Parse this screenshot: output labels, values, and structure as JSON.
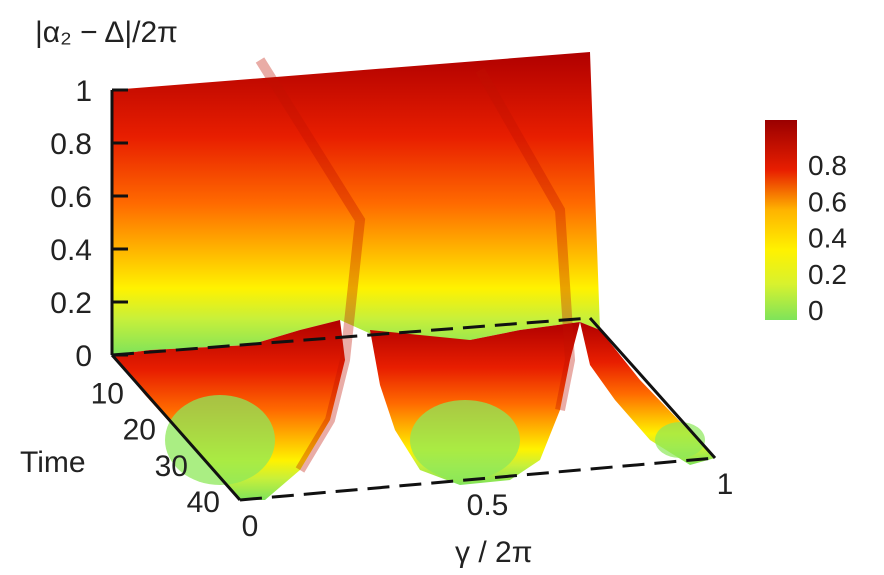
{
  "chart_data": {
    "type": "surface",
    "zlabel": "|α₂ − Δ|/2π",
    "xlabel": "γ / 2π",
    "ylabel": "Time",
    "x_ticks": [
      "0",
      "0.5",
      "1"
    ],
    "y_ticks": [
      "10",
      "20",
      "30",
      "40"
    ],
    "z_ticks": [
      "0",
      "0.2",
      "0.4",
      "0.6",
      "0.8",
      "1"
    ],
    "colorbar_ticks": [
      "0",
      "0.2",
      "0.4",
      "0.6",
      "0.8"
    ],
    "xlim": [
      0,
      1
    ],
    "ylim": [
      0,
      40
    ],
    "zlim": [
      0,
      1
    ],
    "colorscale": [
      "#7ee35a",
      "#d8f22e",
      "#fff200",
      "#ffb300",
      "#ff6a00",
      "#e81e00",
      "#b00000"
    ],
    "surface": {
      "front_edge": [
        [
          0,
          0.92
        ],
        [
          0.2,
          0.88
        ],
        [
          0.35,
          0.55
        ],
        [
          0.42,
          0.02
        ],
        [
          0.5,
          0.85
        ],
        [
          0.72,
          0.88
        ],
        [
          0.82,
          0.5
        ],
        [
          0.9,
          0.05
        ],
        [
          1,
          0.0
        ]
      ],
      "back_edge": [
        [
          0,
          0.98
        ],
        [
          0.2,
          0.98
        ],
        [
          0.4,
          0.98
        ],
        [
          0.6,
          1.0
        ],
        [
          0.8,
          1.0
        ],
        [
          1,
          0.0
        ]
      ],
      "minima_at_t40": [
        0.05,
        0.55,
        0.97
      ]
    }
  }
}
